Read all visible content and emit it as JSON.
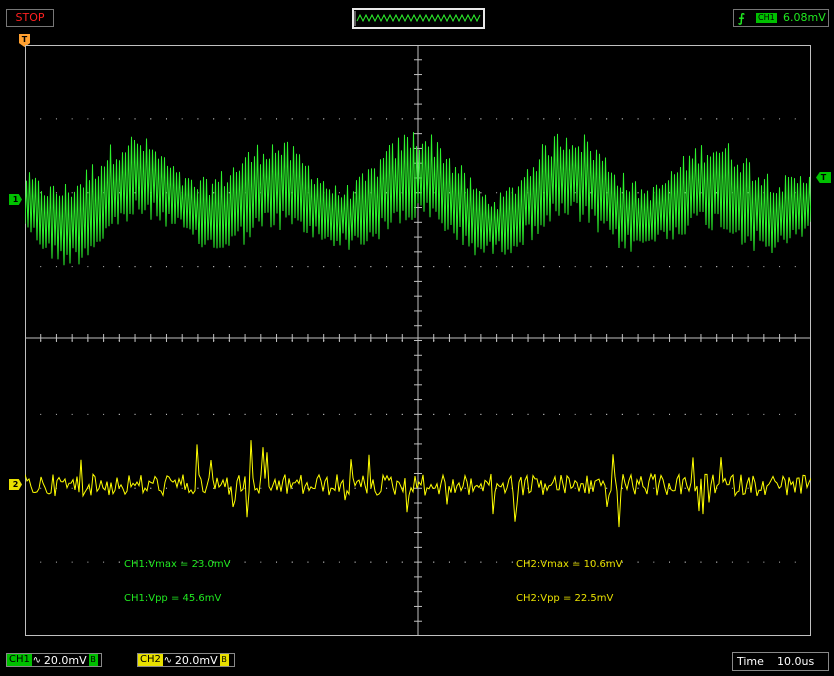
{
  "status": {
    "run_state": "STOP"
  },
  "trigger": {
    "edge_icon": "rising-edge-icon",
    "channel": "CH1",
    "level": "6.08mV"
  },
  "markers": {
    "trigger_position": "T",
    "ch1": "1",
    "ch2": "2",
    "trigger_level": "T"
  },
  "measurements": {
    "ch1_vmax": "CH1:Vmax = 23.0mV",
    "ch1_vpp": "CH1:Vpp = 45.6mV",
    "ch2_vmax": "CH2:Vmax = 10.6mV",
    "ch2_vpp": "CH2:Vpp = 22.5mV"
  },
  "channels": [
    {
      "label": "CH1",
      "coupling_icon": "ac-coupling-icon",
      "coupling": "∿",
      "scale": "20.0mV",
      "bw": "B",
      "color": "#00c000",
      "trace_color": "#2cf22c"
    },
    {
      "label": "CH2",
      "coupling_icon": "ac-coupling-icon",
      "coupling": "∿",
      "scale": "20.0mV",
      "bw": "B",
      "color": "#e8e000",
      "trace_color": "#ffff00"
    }
  ],
  "timebase": {
    "label": "Time",
    "value": "10.0us"
  },
  "colors": {
    "grid": "#c0c0c0",
    "stop": "#ff2020",
    "trigger": "#ffa030"
  }
}
